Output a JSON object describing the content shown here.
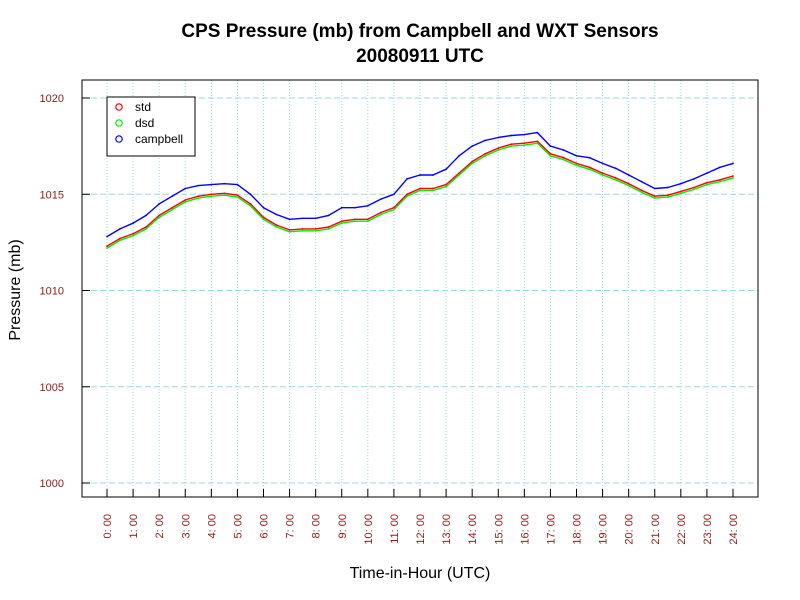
{
  "chart_data": {
    "type": "line",
    "title": "CPS Pressure (mb) from Campbell and WXT Sensors",
    "subtitle": "20080911  UTC",
    "xlabel": "Time-in-Hour (UTC)",
    "ylabel": "Pressure (mb)",
    "xlim": [
      0,
      24
    ],
    "ylim": [
      1000,
      1020
    ],
    "grid": true,
    "legend_position": "top-left",
    "x_ticks": [
      0,
      1,
      2,
      3,
      4,
      5,
      6,
      7,
      8,
      9,
      10,
      11,
      12,
      13,
      14,
      15,
      16,
      17,
      18,
      19,
      20,
      21,
      22,
      23,
      24
    ],
    "x_tick_labels": [
      "0: 00",
      "1: 00",
      "2: 00",
      "3: 00",
      "4: 00",
      "5: 00",
      "6: 00",
      "7: 00",
      "8: 00",
      "9: 00",
      "10: 00",
      "11: 00",
      "12: 00",
      "13: 00",
      "14: 00",
      "15: 00",
      "16: 00",
      "17: 00",
      "18: 00",
      "19: 00",
      "20: 00",
      "21: 00",
      "22: 00",
      "23: 00",
      "24: 00"
    ],
    "y_ticks": [
      1000,
      1005,
      1010,
      1015,
      1020
    ],
    "y_tick_labels": [
      "1000",
      "1005",
      "1010",
      "1015",
      "1020"
    ],
    "series": [
      {
        "name": "std",
        "color": "#ff0000",
        "x": [
          0,
          0.5,
          1,
          1.5,
          2,
          2.5,
          3,
          3.5,
          4,
          4.5,
          5,
          5.5,
          6,
          6.5,
          7,
          7.5,
          8,
          8.5,
          9,
          9.5,
          10,
          10.5,
          11,
          11.5,
          12,
          12.5,
          13,
          13.5,
          14,
          14.5,
          15,
          15.5,
          16,
          16.5,
          17,
          17.5,
          18,
          18.5,
          19,
          19.5,
          20,
          20.5,
          21,
          21.5,
          22,
          22.5,
          23,
          23.5,
          24
        ],
        "values": [
          1012.3,
          1012.7,
          1012.95,
          1013.3,
          1013.9,
          1014.3,
          1014.7,
          1014.9,
          1015.0,
          1015.05,
          1014.95,
          1014.5,
          1013.8,
          1013.4,
          1013.15,
          1013.2,
          1013.2,
          1013.3,
          1013.6,
          1013.7,
          1013.7,
          1014.05,
          1014.3,
          1015.0,
          1015.3,
          1015.3,
          1015.5,
          1016.1,
          1016.7,
          1017.1,
          1017.4,
          1017.6,
          1017.65,
          1017.75,
          1017.1,
          1016.9,
          1016.6,
          1016.4,
          1016.1,
          1015.85,
          1015.55,
          1015.2,
          1014.9,
          1014.95,
          1015.15,
          1015.35,
          1015.6,
          1015.75,
          1015.95
        ]
      },
      {
        "name": "dsd",
        "color": "#00ee00",
        "x": [
          0,
          0.5,
          1,
          1.5,
          2,
          2.5,
          3,
          3.5,
          4,
          4.5,
          5,
          5.5,
          6,
          6.5,
          7,
          7.5,
          8,
          8.5,
          9,
          9.5,
          10,
          10.5,
          11,
          11.5,
          12,
          12.5,
          13,
          13.5,
          14,
          14.5,
          15,
          15.5,
          16,
          16.5,
          17,
          17.5,
          18,
          18.5,
          19,
          19.5,
          20,
          20.5,
          21,
          21.5,
          22,
          22.5,
          23,
          23.5,
          24
        ],
        "values": [
          1012.2,
          1012.6,
          1012.85,
          1013.2,
          1013.8,
          1014.2,
          1014.6,
          1014.8,
          1014.9,
          1014.95,
          1014.85,
          1014.4,
          1013.7,
          1013.3,
          1013.05,
          1013.1,
          1013.1,
          1013.2,
          1013.5,
          1013.6,
          1013.6,
          1013.95,
          1014.2,
          1014.9,
          1015.2,
          1015.2,
          1015.4,
          1016.0,
          1016.6,
          1017.0,
          1017.3,
          1017.5,
          1017.55,
          1017.65,
          1017.0,
          1016.8,
          1016.5,
          1016.3,
          1016.0,
          1015.75,
          1015.45,
          1015.1,
          1014.8,
          1014.85,
          1015.05,
          1015.25,
          1015.5,
          1015.65,
          1015.85
        ]
      },
      {
        "name": "campbell",
        "color": "#0000ff",
        "x": [
          0,
          0.5,
          1,
          1.5,
          2,
          2.5,
          3,
          3.5,
          4,
          4.5,
          5,
          5.5,
          6,
          6.5,
          7,
          7.5,
          8,
          8.5,
          9,
          9.5,
          10,
          10.5,
          11,
          11.5,
          12,
          12.5,
          13,
          13.5,
          14,
          14.5,
          15,
          15.5,
          16,
          16.5,
          17,
          17.5,
          18,
          18.5,
          19,
          19.5,
          20,
          20.5,
          21,
          21.5,
          22,
          22.5,
          23,
          23.5,
          24
        ],
        "values": [
          1012.8,
          1013.2,
          1013.5,
          1013.9,
          1014.5,
          1014.9,
          1015.3,
          1015.45,
          1015.5,
          1015.55,
          1015.5,
          1015.0,
          1014.3,
          1013.95,
          1013.7,
          1013.75,
          1013.75,
          1013.9,
          1014.3,
          1014.3,
          1014.4,
          1014.75,
          1015.0,
          1015.8,
          1016.0,
          1016.0,
          1016.3,
          1017.0,
          1017.5,
          1017.8,
          1017.95,
          1018.05,
          1018.1,
          1018.2,
          1017.5,
          1017.3,
          1017.0,
          1016.9,
          1016.6,
          1016.35,
          1016.0,
          1015.65,
          1015.3,
          1015.35,
          1015.55,
          1015.8,
          1016.1,
          1016.4,
          1016.6
        ]
      }
    ]
  }
}
